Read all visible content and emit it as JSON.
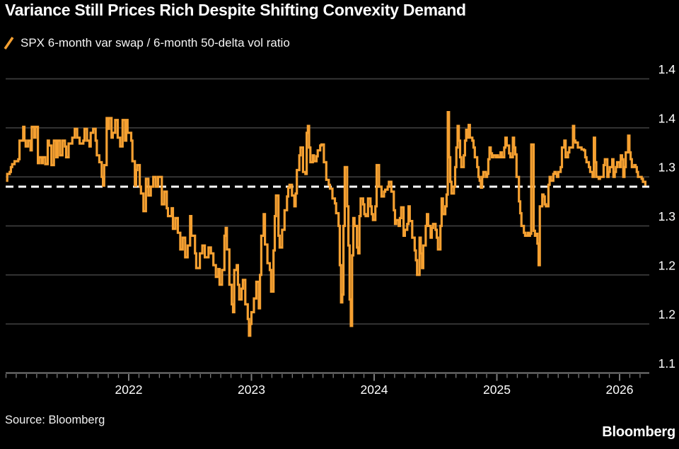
{
  "title": "Variance Still Prices Rich Despite Shifting Convexity Demand",
  "legend": {
    "label": "SPX 6-month var swap / 6-month 50-delta vol ratio",
    "marker": "slash-icon"
  },
  "source": "Source: Bloomberg",
  "brand": "Bloomberg",
  "colors": {
    "background": "#000000",
    "series": "#F5A031",
    "grid": "#3D3D3D",
    "axis": "#7A7A7A",
    "text": "#FFFFFF",
    "reference": "#FFFFFF"
  },
  "chart_data": {
    "type": "line",
    "line_style": "step-after",
    "title": "Variance Still Prices Rich Despite Shifting Convexity Demand",
    "series_name": "SPX 6-month var swap / 6-month 50-delta vol ratio",
    "x_unit": "decimal_year",
    "grid": true,
    "legend_position": "top-left",
    "y_axis": {
      "side": "right",
      "min": 1.1,
      "max": 1.4,
      "tick_step": 0.05,
      "tick_values": [
        1.4,
        1.35,
        1.3,
        1.25,
        1.2,
        1.15,
        1.1
      ],
      "tick_labels": [
        "1.4",
        "1.4",
        "1.3",
        "1.3",
        "1.2",
        "1.2",
        "1.1"
      ]
    },
    "x_axis": {
      "range": [
        2021.0,
        2026.25
      ],
      "tick_years": [
        2022,
        2023,
        2024,
        2025,
        2026
      ],
      "minor_tick": "monthly"
    },
    "reference_line": {
      "value": 1.29,
      "style": "dashed"
    },
    "x": [
      2021.0,
      2021.01,
      2021.03,
      2021.04,
      2021.05,
      2021.07,
      2021.08,
      2021.1,
      2021.11,
      2021.14,
      2021.15,
      2021.16,
      2021.18,
      2021.2,
      2021.21,
      2021.23,
      2021.24,
      2021.26,
      2021.27,
      2021.29,
      2021.3,
      2021.32,
      2021.34,
      2021.35,
      2021.37,
      2021.39,
      2021.41,
      2021.42,
      2021.44,
      2021.46,
      2021.48,
      2021.49,
      2021.51,
      2021.53,
      2021.54,
      2021.56,
      2021.58,
      2021.6,
      2021.63,
      2021.64,
      2021.66,
      2021.68,
      2021.69,
      2021.71,
      2021.73,
      2021.74,
      2021.76,
      2021.78,
      2021.79,
      2021.8,
      2021.82,
      2021.83,
      2021.84,
      2021.86,
      2021.87,
      2021.89,
      2021.91,
      2021.93,
      2021.95,
      2021.97,
      2021.98,
      2021.99,
      2022.02,
      2022.03,
      2022.05,
      2022.06,
      2022.07,
      2022.09,
      2022.1,
      2022.12,
      2022.14,
      2022.16,
      2022.18,
      2022.2,
      2022.22,
      2022.24,
      2022.26,
      2022.27,
      2022.29,
      2022.31,
      2022.32,
      2022.35,
      2022.36,
      2022.38,
      2022.4,
      2022.42,
      2022.44,
      2022.46,
      2022.48,
      2022.5,
      2022.51,
      2022.54,
      2022.55,
      2022.58,
      2022.6,
      2022.62,
      2022.65,
      2022.67,
      2022.69,
      2022.71,
      2022.73,
      2022.74,
      2022.76,
      2022.78,
      2022.79,
      2022.8,
      2022.82,
      2022.84,
      2022.85,
      2022.86,
      2022.88,
      2022.89,
      2022.9,
      2022.92,
      2022.93,
      2022.95,
      2022.97,
      2022.98,
      2022.99,
      2023.0,
      2023.02,
      2023.04,
      2023.06,
      2023.07,
      2023.08,
      2023.1,
      2023.11,
      2023.13,
      2023.15,
      2023.16,
      2023.18,
      2023.19,
      2023.2,
      2023.22,
      2023.23,
      2023.25,
      2023.27,
      2023.29,
      2023.3,
      2023.31,
      2023.33,
      2023.35,
      2023.36,
      2023.37,
      2023.39,
      2023.4,
      2023.42,
      2023.44,
      2023.45,
      2023.46,
      2023.47,
      2023.48,
      2023.5,
      2023.51,
      2023.53,
      2023.54,
      2023.56,
      2023.57,
      2023.59,
      2023.61,
      2023.63,
      2023.64,
      2023.66,
      2023.68,
      2023.69,
      2023.71,
      2023.72,
      2023.73,
      2023.74,
      2023.75,
      2023.76,
      2023.78,
      2023.79,
      2023.8,
      2023.81,
      2023.82,
      2023.83,
      2023.84,
      2023.86,
      2023.87,
      2023.88,
      2023.89,
      2023.91,
      2023.92,
      2023.93,
      2023.95,
      2023.97,
      2023.98,
      2023.99,
      2024.01,
      2024.02,
      2024.04,
      2024.06,
      2024.08,
      2024.09,
      2024.11,
      2024.12,
      2024.14,
      2024.16,
      2024.17,
      2024.18,
      2024.2,
      2024.21,
      2024.22,
      2024.24,
      2024.25,
      2024.27,
      2024.28,
      2024.29,
      2024.31,
      2024.33,
      2024.34,
      2024.35,
      2024.37,
      2024.38,
      2024.39,
      2024.4,
      2024.42,
      2024.43,
      2024.44,
      2024.46,
      2024.47,
      2024.48,
      2024.5,
      2024.51,
      2024.52,
      2024.54,
      2024.55,
      2024.56,
      2024.58,
      2024.59,
      2024.6,
      2024.61,
      2024.62,
      2024.63,
      2024.65,
      2024.66,
      2024.67,
      2024.68,
      2024.69,
      2024.7,
      2024.71,
      2024.73,
      2024.74,
      2024.75,
      2024.76,
      2024.77,
      2024.78,
      2024.8,
      2024.81,
      2024.82,
      2024.84,
      2024.85,
      2024.86,
      2024.87,
      2024.88,
      2024.89,
      2024.91,
      2024.92,
      2024.93,
      2024.94,
      2024.95,
      2024.96,
      2024.97,
      2024.99,
      2025.0,
      2025.01,
      2025.03,
      2025.04,
      2025.06,
      2025.07,
      2025.08,
      2025.1,
      2025.11,
      2025.13,
      2025.14,
      2025.15,
      2025.16,
      2025.18,
      2025.19,
      2025.2,
      2025.22,
      2025.23,
      2025.25,
      2025.26,
      2025.27,
      2025.28,
      2025.3,
      2025.31,
      2025.32,
      2025.33,
      2025.34,
      2025.35,
      2025.37,
      2025.38,
      2025.39,
      2025.4,
      2025.42,
      2025.43,
      2025.44,
      2025.46,
      2025.47,
      2025.48,
      2025.49,
      2025.5,
      2025.52,
      2025.53,
      2025.55,
      2025.56,
      2025.58,
      2025.59,
      2025.6,
      2025.62,
      2025.63,
      2025.64,
      2025.66,
      2025.68,
      2025.69,
      2025.71,
      2025.72,
      2025.73,
      2025.75,
      2025.76,
      2025.78,
      2025.79,
      2025.8,
      2025.81,
      2025.83,
      2025.84,
      2025.86,
      2025.87,
      2025.88,
      2025.9,
      2025.91,
      2025.92,
      2025.94,
      2025.95,
      2025.96,
      2025.97,
      2025.98,
      2026.0,
      2026.01,
      2026.02,
      2026.03,
      2026.04,
      2026.05,
      2026.07,
      2026.08,
      2026.09,
      2026.1,
      2026.12,
      2026.13,
      2026.14,
      2026.15,
      2026.17,
      2026.18,
      2026.19,
      2026.21
    ],
    "values": [
      1.296,
      1.303,
      1.305,
      1.31,
      1.313,
      1.316,
      1.316,
      1.318,
      1.337,
      1.351,
      1.337,
      1.331,
      1.337,
      1.327,
      1.351,
      1.34,
      1.351,
      1.314,
      1.32,
      1.314,
      1.32,
      1.313,
      1.337,
      1.332,
      1.312,
      1.337,
      1.32,
      1.337,
      1.322,
      1.337,
      1.331,
      1.32,
      1.334,
      1.334,
      1.34,
      1.349,
      1.34,
      1.334,
      1.337,
      1.349,
      1.337,
      1.331,
      1.345,
      1.349,
      1.337,
      1.322,
      1.315,
      1.3,
      1.291,
      1.312,
      1.36,
      1.349,
      1.36,
      1.34,
      1.345,
      1.358,
      1.34,
      1.331,
      1.358,
      1.337,
      1.358,
      1.345,
      1.337,
      1.316,
      1.291,
      1.307,
      1.312,
      1.29,
      1.283,
      1.265,
      1.298,
      1.281,
      1.29,
      1.3,
      1.29,
      1.3,
      1.3,
      1.272,
      1.285,
      1.268,
      1.26,
      1.268,
      1.247,
      1.258,
      1.243,
      1.226,
      1.238,
      1.218,
      1.23,
      1.26,
      1.24,
      1.222,
      1.207,
      1.222,
      1.23,
      1.218,
      1.228,
      1.222,
      1.21,
      1.198,
      1.206,
      1.19,
      1.205,
      1.24,
      1.248,
      1.226,
      1.19,
      1.17,
      1.162,
      1.205,
      1.21,
      1.19,
      1.175,
      1.186,
      1.195,
      1.17,
      1.155,
      1.138,
      1.15,
      1.162,
      1.176,
      1.193,
      1.166,
      1.2,
      1.24,
      1.262,
      1.231,
      1.212,
      1.205,
      1.183,
      1.225,
      1.26,
      1.281,
      1.24,
      1.228,
      1.246,
      1.266,
      1.28,
      1.289,
      1.292,
      1.281,
      1.27,
      1.283,
      1.307,
      1.322,
      1.33,
      1.305,
      1.303,
      1.345,
      1.352,
      1.33,
      1.315,
      1.322,
      1.316,
      1.321,
      1.327,
      1.332,
      1.333,
      1.315,
      1.297,
      1.292,
      1.288,
      1.278,
      1.273,
      1.263,
      1.25,
      1.21,
      1.172,
      1.18,
      1.25,
      1.31,
      1.27,
      1.23,
      1.175,
      1.148,
      1.22,
      1.258,
      1.25,
      1.228,
      1.222,
      1.26,
      1.278,
      1.272,
      1.262,
      1.26,
      1.278,
      1.27,
      1.262,
      1.256,
      1.27,
      1.312,
      1.29,
      1.28,
      1.285,
      1.287,
      1.29,
      1.295,
      1.285,
      1.266,
      1.252,
      1.256,
      1.25,
      1.258,
      1.269,
      1.24,
      1.246,
      1.252,
      1.27,
      1.255,
      1.238,
      1.225,
      1.215,
      1.2,
      1.238,
      1.222,
      1.207,
      1.23,
      1.25,
      1.262,
      1.25,
      1.238,
      1.248,
      1.252,
      1.246,
      1.238,
      1.226,
      1.25,
      1.278,
      1.262,
      1.27,
      1.282,
      1.366,
      1.32,
      1.295,
      1.283,
      1.29,
      1.31,
      1.33,
      1.352,
      1.337,
      1.32,
      1.31,
      1.322,
      1.337,
      1.348,
      1.34,
      1.353,
      1.34,
      1.337,
      1.33,
      1.32,
      1.31,
      1.3,
      1.296,
      1.289,
      1.3,
      1.305,
      1.3,
      1.303,
      1.318,
      1.33,
      1.324,
      1.32,
      1.322,
      1.32,
      1.322,
      1.32,
      1.325,
      1.32,
      1.33,
      1.34,
      1.332,
      1.324,
      1.32,
      1.34,
      1.33,
      1.323,
      1.3,
      1.275,
      1.263,
      1.25,
      1.243,
      1.24,
      1.243,
      1.24,
      1.242,
      1.333,
      1.245,
      1.24,
      1.242,
      1.232,
      1.21,
      1.27,
      1.282,
      1.28,
      1.272,
      1.27,
      1.292,
      1.3,
      1.296,
      1.303,
      1.305,
      1.303,
      1.3,
      1.305,
      1.31,
      1.33,
      1.337,
      1.32,
      1.325,
      1.33,
      1.33,
      1.352,
      1.337,
      1.335,
      1.33,
      1.33,
      1.328,
      1.327,
      1.32,
      1.315,
      1.31,
      1.305,
      1.3,
      1.34,
      1.315,
      1.3,
      1.298,
      1.3,
      1.3,
      1.312,
      1.318,
      1.3,
      1.305,
      1.31,
      1.318,
      1.3,
      1.305,
      1.31,
      1.315,
      1.31,
      1.322,
      1.318,
      1.3,
      1.31,
      1.325,
      1.342,
      1.325,
      1.318,
      1.31,
      1.312,
      1.31,
      1.305,
      1.3,
      1.3,
      1.298,
      1.295,
      1.291
    ]
  }
}
